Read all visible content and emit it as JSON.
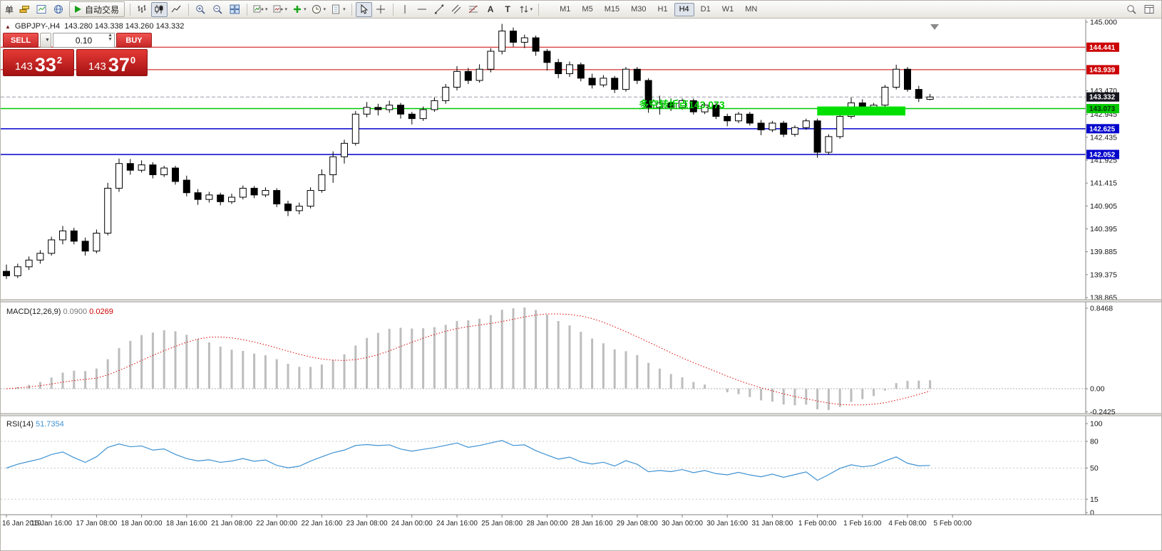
{
  "toolbar": {
    "order_char": "单",
    "auto_trading": "自动交易",
    "text_tool": "A",
    "label_tool": "T",
    "timeframes": [
      "M1",
      "M5",
      "M15",
      "M30",
      "H1",
      "H4",
      "D1",
      "W1",
      "MN"
    ],
    "active_timeframe": "H4"
  },
  "trade_panel": {
    "sell_label": "SELL",
    "buy_label": "BUY",
    "volume": "0.10",
    "sell_big_left": "143",
    "sell_big_mid": "33",
    "sell_sup": "2",
    "buy_big_left": "143",
    "buy_big_mid": "37",
    "buy_sup": "0"
  },
  "chart_data": {
    "type": "candlestick",
    "symbol_label": "GBPJPY-,H4",
    "ohlc_text": "143.280 143.338 143.260 143.332",
    "price_range": {
      "min": 138.865,
      "max": 145.0
    },
    "price_axis_labels": [
      "145.000",
      "143.470",
      "142.945",
      "142.435",
      "141.925",
      "141.415",
      "140.905",
      "140.395",
      "139.885",
      "139.375",
      "138.865"
    ],
    "hlines": [
      {
        "price": 144.441,
        "label": "144.441",
        "color": "#cc0000",
        "width": 1,
        "tag_text": "#ffffff"
      },
      {
        "price": 143.939,
        "label": "143.939",
        "color": "#cc0000",
        "width": 1,
        "tag_text": "#ffffff"
      },
      {
        "price": 143.073,
        "label": "143.073",
        "color": "#00c800",
        "width": 1.5,
        "tag_text": "#003300"
      },
      {
        "price": 142.625,
        "label": "142.625",
        "color": "#0000cc",
        "width": 1.5,
        "tag_text": "#ffffff"
      },
      {
        "price": 142.052,
        "label": "142.052",
        "color": "#0000cc",
        "width": 1.5,
        "tag_text": "#ffffff"
      }
    ],
    "current_price": {
      "value": 143.332,
      "label": "143.332",
      "line_color": "#9a9aa8",
      "tag_bg": "#15151f"
    },
    "rectangle": {
      "from_candle": 72.3,
      "to_candle": 79.5,
      "price_top": 143.12,
      "price_bottom": 142.92,
      "color": "#00e000"
    },
    "annotation": {
      "text": "多空转折点143.073",
      "color": "#00cf00"
    },
    "candles": [
      [
        139.45,
        139.6,
        139.28,
        139.35
      ],
      [
        139.35,
        139.62,
        139.3,
        139.55
      ],
      [
        139.55,
        139.78,
        139.48,
        139.7
      ],
      [
        139.7,
        139.92,
        139.62,
        139.85
      ],
      [
        139.85,
        140.22,
        139.8,
        140.15
      ],
      [
        140.15,
        140.46,
        140.05,
        140.35
      ],
      [
        140.35,
        140.42,
        140.05,
        140.12
      ],
      [
        140.12,
        140.2,
        139.8,
        139.9
      ],
      [
        139.9,
        140.38,
        139.85,
        140.3
      ],
      [
        140.3,
        141.42,
        140.25,
        141.3
      ],
      [
        141.3,
        141.96,
        141.22,
        141.85
      ],
      [
        141.85,
        141.95,
        141.6,
        141.7
      ],
      [
        141.7,
        141.92,
        141.65,
        141.82
      ],
      [
        141.82,
        141.88,
        141.52,
        141.6
      ],
      [
        141.6,
        141.8,
        141.55,
        141.75
      ],
      [
        141.75,
        141.8,
        141.38,
        141.45
      ],
      [
        141.48,
        141.58,
        141.12,
        141.2
      ],
      [
        141.2,
        141.28,
        140.93,
        141.05
      ],
      [
        141.05,
        141.22,
        140.98,
        141.15
      ],
      [
        141.15,
        141.2,
        140.92,
        141.0
      ],
      [
        141.0,
        141.18,
        140.95,
        141.1
      ],
      [
        141.1,
        141.36,
        141.05,
        141.3
      ],
      [
        141.3,
        141.35,
        141.08,
        141.15
      ],
      [
        141.15,
        141.32,
        141.1,
        141.25
      ],
      [
        141.25,
        141.3,
        140.88,
        140.95
      ],
      [
        140.95,
        141.02,
        140.68,
        140.8
      ],
      [
        140.8,
        140.98,
        140.72,
        140.9
      ],
      [
        140.9,
        141.32,
        140.85,
        141.25
      ],
      [
        141.25,
        141.72,
        141.2,
        141.6
      ],
      [
        141.6,
        142.12,
        141.42,
        142.0
      ],
      [
        142.0,
        142.38,
        141.85,
        142.3
      ],
      [
        142.3,
        143.02,
        142.25,
        142.95
      ],
      [
        142.95,
        143.22,
        142.88,
        143.1
      ],
      [
        143.1,
        143.18,
        142.92,
        143.05
      ],
      [
        143.05,
        143.25,
        142.98,
        143.15
      ],
      [
        143.15,
        143.2,
        142.85,
        142.95
      ],
      [
        142.95,
        143.0,
        142.72,
        142.85
      ],
      [
        142.85,
        143.12,
        142.8,
        143.05
      ],
      [
        143.05,
        143.32,
        143.0,
        143.25
      ],
      [
        143.25,
        143.62,
        143.18,
        143.55
      ],
      [
        143.55,
        144.02,
        143.48,
        143.9
      ],
      [
        143.9,
        143.98,
        143.62,
        143.7
      ],
      [
        143.7,
        144.06,
        143.65,
        143.95
      ],
      [
        143.95,
        144.42,
        143.88,
        144.35
      ],
      [
        144.35,
        144.96,
        144.28,
        144.8
      ],
      [
        144.8,
        144.88,
        144.45,
        144.55
      ],
      [
        144.55,
        144.72,
        144.42,
        144.65
      ],
      [
        144.65,
        144.7,
        144.25,
        144.35
      ],
      [
        144.35,
        144.4,
        143.92,
        144.1
      ],
      [
        144.1,
        144.18,
        143.75,
        143.85
      ],
      [
        143.85,
        144.12,
        143.78,
        144.05
      ],
      [
        144.05,
        144.1,
        143.68,
        143.75
      ],
      [
        143.75,
        143.85,
        143.52,
        143.6
      ],
      [
        143.6,
        143.82,
        143.55,
        143.75
      ],
      [
        143.75,
        143.8,
        143.42,
        143.5
      ],
      [
        143.5,
        144.0,
        143.45,
        143.95
      ],
      [
        143.95,
        144.0,
        143.62,
        143.7
      ],
      [
        143.7,
        143.75,
        142.98,
        143.1
      ],
      [
        143.1,
        143.36,
        142.94,
        143.2
      ],
      [
        143.2,
        143.3,
        143.02,
        143.1
      ],
      [
        143.1,
        143.3,
        143.05,
        143.25
      ],
      [
        143.25,
        143.3,
        142.94,
        143.0
      ],
      [
        143.0,
        143.2,
        142.95,
        143.15
      ],
      [
        143.15,
        143.2,
        142.84,
        142.9
      ],
      [
        142.9,
        142.96,
        142.68,
        142.8
      ],
      [
        142.8,
        143.0,
        142.75,
        142.95
      ],
      [
        142.95,
        143.0,
        142.7,
        142.75
      ],
      [
        142.75,
        142.82,
        142.48,
        142.6
      ],
      [
        142.6,
        142.8,
        142.55,
        142.75
      ],
      [
        142.75,
        142.8,
        142.44,
        142.5
      ],
      [
        142.5,
        142.7,
        142.45,
        142.65
      ],
      [
        142.65,
        142.85,
        142.6,
        142.8
      ],
      [
        142.8,
        142.85,
        141.98,
        142.1
      ],
      [
        142.1,
        142.5,
        142.05,
        142.45
      ],
      [
        142.45,
        142.95,
        142.4,
        142.9
      ],
      [
        142.9,
        143.32,
        142.85,
        143.2
      ],
      [
        143.2,
        143.28,
        143.0,
        143.05
      ],
      [
        143.05,
        143.2,
        143.0,
        143.15
      ],
      [
        143.15,
        143.6,
        143.1,
        143.55
      ],
      [
        143.55,
        144.05,
        143.5,
        143.95
      ],
      [
        143.95,
        144.0,
        143.45,
        143.5
      ],
      [
        143.5,
        143.58,
        143.22,
        143.3
      ],
      [
        143.28,
        143.4,
        143.26,
        143.332
      ]
    ],
    "time_labels": [
      {
        "i": 0,
        "t": "16 Jan 2019"
      },
      {
        "i": 4,
        "t": "16 Jan 16:00"
      },
      {
        "i": 8,
        "t": "17 Jan 08:00"
      },
      {
        "i": 12,
        "t": "18 Jan 00:00"
      },
      {
        "i": 16,
        "t": "18 Jan 16:00"
      },
      {
        "i": 20,
        "t": "21 Jan 08:00"
      },
      {
        "i": 24,
        "t": "22 Jan 00:00"
      },
      {
        "i": 28,
        "t": "22 Jan 16:00"
      },
      {
        "i": 32,
        "t": "23 Jan 08:00"
      },
      {
        "i": 36,
        "t": "24 Jan 00:00"
      },
      {
        "i": 40,
        "t": "24 Jan 16:00"
      },
      {
        "i": 44,
        "t": "25 Jan 08:00"
      },
      {
        "i": 48,
        "t": "28 Jan 00:00"
      },
      {
        "i": 52,
        "t": "28 Jan 16:00"
      },
      {
        "i": 56,
        "t": "29 Jan 08:00"
      },
      {
        "i": 60,
        "t": "30 Jan 00:00"
      },
      {
        "i": 64,
        "t": "30 Jan 16:00"
      },
      {
        "i": 68,
        "t": "31 Jan 08:00"
      },
      {
        "i": 72,
        "t": "1 Feb 00:00"
      },
      {
        "i": 76,
        "t": "1 Feb 16:00"
      },
      {
        "i": 80,
        "t": "4 Feb 08:00"
      },
      {
        "i": 84,
        "t": "5 Feb 00:00"
      }
    ],
    "indicators": {
      "macd": {
        "label": "MACD(12,26,9)",
        "value_main": "0.0900",
        "value_signal": "0.0269",
        "axis": [
          "0.8468",
          "0.00",
          "-0.2425"
        ],
        "axis_values": [
          0.8468,
          0,
          -0.2425
        ],
        "histogram_color": "#bdbdbd",
        "signal_color": "#dd0000"
      },
      "rsi": {
        "label": "RSI(14)",
        "value": "51.7354",
        "axis": [
          "100",
          "80",
          "50",
          "15",
          "0"
        ],
        "axis_values": [
          100,
          80,
          50,
          15,
          0
        ],
        "levels": [
          80,
          50,
          15
        ],
        "line_color": "#3f92d2"
      }
    }
  }
}
